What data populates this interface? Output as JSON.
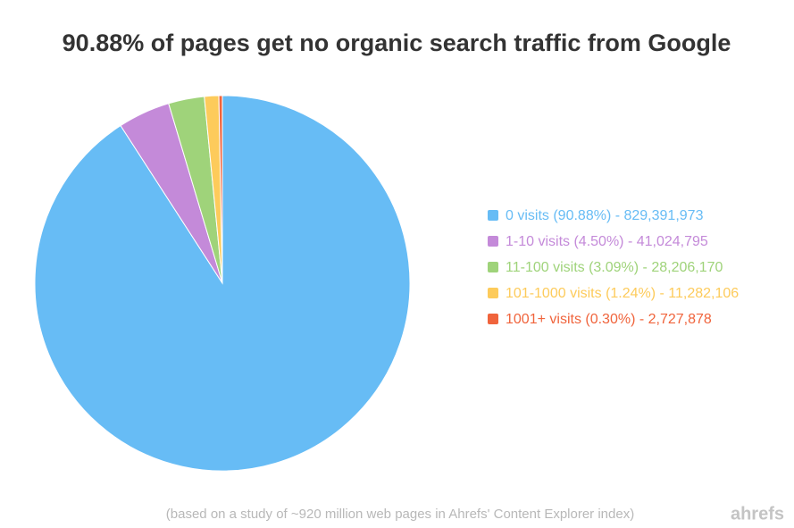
{
  "chart_data": {
    "type": "pie",
    "title": "90.88% of pages get no organic search traffic from Google",
    "categories": [
      "0 visits (90.88%) - 829,391,973",
      "1-10 visits (4.50%) - 41,024,795",
      "11-100 visits (3.09%) - 28,206,170",
      "101-1000 visits (1.24%) - 11,282,106",
      "1001+ visits (0.30%) - 2,727,878"
    ],
    "values": [
      90.88,
      4.5,
      3.09,
      1.24,
      0.3
    ],
    "colors": [
      "#67bcf5",
      "#c48ad9",
      "#9fd37a",
      "#fdcb5b",
      "#f0643c"
    ],
    "legend": "right",
    "footnote": "(based on a study of ~920 million web pages in Ahrefs' Content Explorer index)",
    "brand": "ahrefs"
  }
}
